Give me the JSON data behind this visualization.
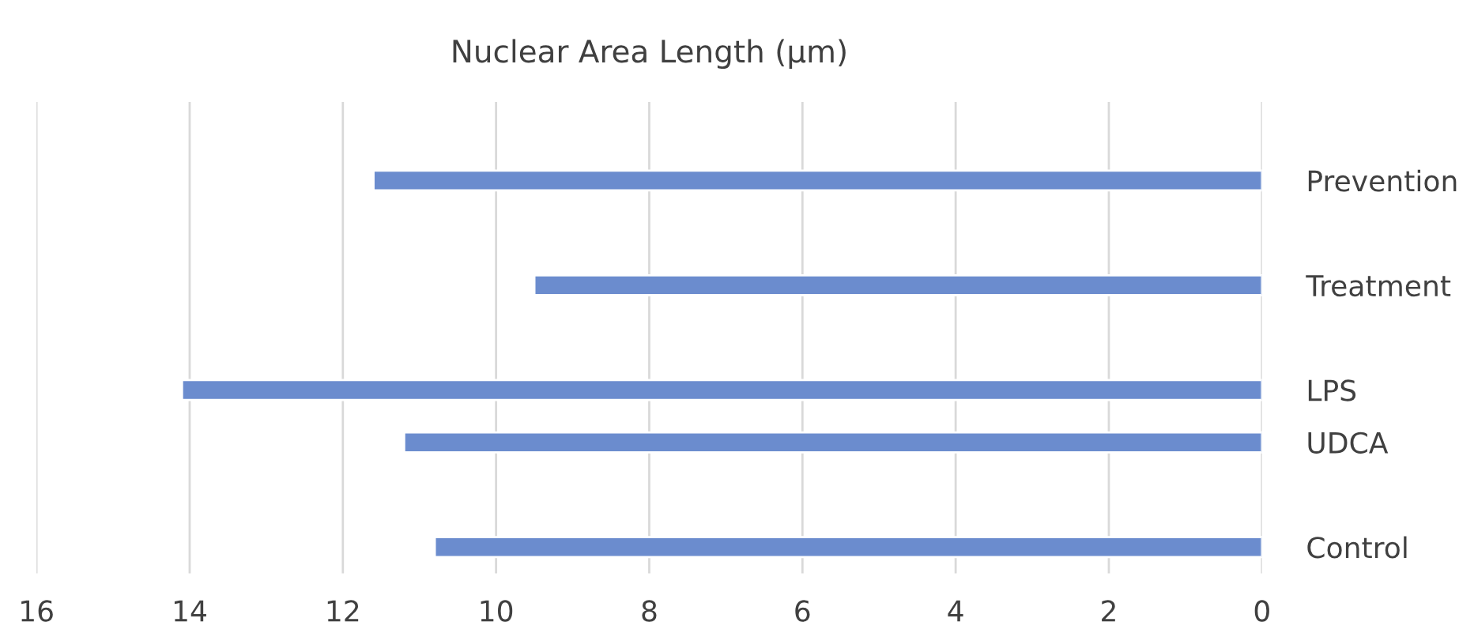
{
  "chart_data": {
    "type": "bar",
    "orientation": "horizontal",
    "title": "Nuclear Area Length (µm)",
    "categories": [
      "Prevention",
      null,
      "Treatment",
      null,
      "LPS",
      "UDCA",
      null,
      "Control"
    ],
    "values": [
      11.6,
      null,
      9.5,
      null,
      14.1,
      11.2,
      null,
      10.8
    ],
    "color": "#6b8cce",
    "xlim": [
      16,
      0
    ],
    "xticks": [
      16,
      14,
      12,
      10,
      8,
      6,
      4,
      2,
      0
    ],
    "grid": "x"
  }
}
